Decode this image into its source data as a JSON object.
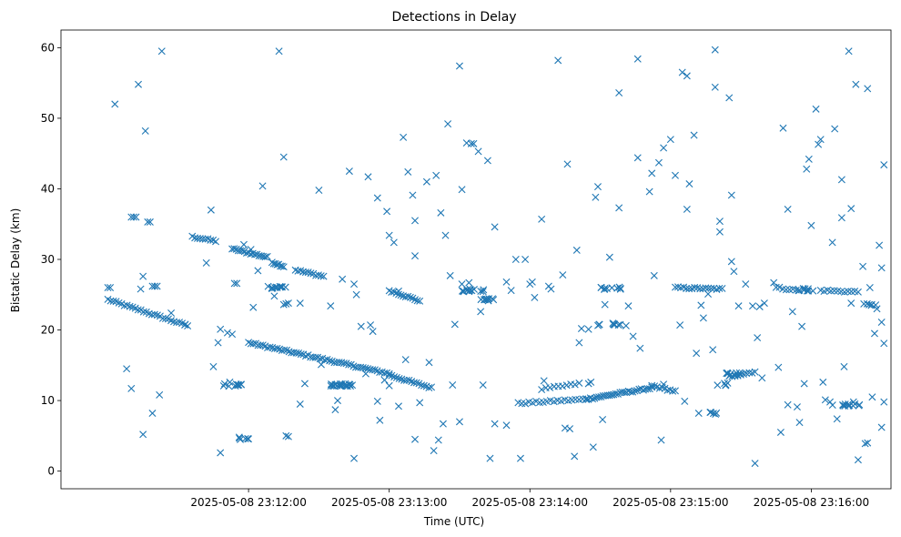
{
  "chart_data": {
    "type": "scatter",
    "title": "Detections in Delay",
    "xlabel": "Time (UTC)",
    "ylabel": "Bistatic Delay (km)",
    "x_unit": "seconds after 2025-05-08 23:11:00",
    "xlim": [
      -20,
      334
    ],
    "ylim": [
      -2.5,
      62.5
    ],
    "marker": "x",
    "color": "#1f77b4",
    "grid": false,
    "x_ticks": [
      {
        "value": 60,
        "label": "2025-05-08 23:12:00"
      },
      {
        "value": 120,
        "label": "2025-05-08 23:13:00"
      },
      {
        "value": 180,
        "label": "2025-05-08 23:14:00"
      },
      {
        "value": 240,
        "label": "2025-05-08 23:15:00"
      },
      {
        "value": 300,
        "label": "2025-05-08 23:16:00"
      }
    ],
    "y_ticks": [
      {
        "value": 0,
        "label": "0"
      },
      {
        "value": 10,
        "label": "10"
      },
      {
        "value": 20,
        "label": "20"
      },
      {
        "value": 30,
        "label": "30"
      },
      {
        "value": 40,
        "label": "40"
      },
      {
        "value": 50,
        "label": "50"
      },
      {
        "value": 60,
        "label": "60"
      }
    ],
    "tracks": [
      {
        "name": "track-a",
        "from": [
          0,
          24.3
        ],
        "to": [
          34,
          20.6
        ],
        "count": 30
      },
      {
        "name": "track-b",
        "from": [
          36,
          33.2
        ],
        "to": [
          46,
          32.6
        ],
        "count": 10
      },
      {
        "name": "track-c",
        "from": [
          53,
          31.5
        ],
        "to": [
          68,
          30.3
        ],
        "count": 18
      },
      {
        "name": "track-d",
        "from": [
          70,
          29.6
        ],
        "to": [
          75,
          29.0
        ],
        "count": 8
      },
      {
        "name": "track-e",
        "from": [
          80,
          28.5
        ],
        "to": [
          92,
          27.6
        ],
        "count": 12
      },
      {
        "name": "track-f",
        "from": [
          60,
          18.2
        ],
        "to": [
          120,
          13.8
        ],
        "count": 60
      },
      {
        "name": "track-g",
        "from": [
          120,
          13.6
        ],
        "to": [
          138,
          11.8
        ],
        "count": 18
      },
      {
        "name": "track-h",
        "from": [
          120,
          25.6
        ],
        "to": [
          133,
          24.1
        ],
        "count": 14
      },
      {
        "name": "track-i",
        "from": [
          175,
          9.6
        ],
        "to": [
          204,
          10.2
        ],
        "count": 20
      },
      {
        "name": "track-j",
        "from": [
          204,
          10.2
        ],
        "to": [
          232,
          11.8
        ],
        "count": 32
      },
      {
        "name": "track-k",
        "from": [
          185,
          11.6
        ],
        "to": [
          201,
          12.4
        ],
        "count": 10
      },
      {
        "name": "track-l",
        "from": [
          232,
          12.1
        ],
        "to": [
          242,
          11.3
        ],
        "count": 10
      },
      {
        "name": "track-m",
        "from": [
          242,
          26.0
        ],
        "to": [
          262,
          25.8
        ],
        "count": 18
      },
      {
        "name": "track-n",
        "from": [
          265,
          13.4
        ],
        "to": [
          276,
          14.1
        ],
        "count": 10
      },
      {
        "name": "track-o",
        "from": [
          285,
          26.0
        ],
        "to": [
          295,
          25.6
        ],
        "count": 8
      },
      {
        "name": "track-p",
        "from": [
          304,
          25.6
        ],
        "to": [
          320,
          25.4
        ],
        "count": 12
      }
    ],
    "clusters": [
      {
        "name": "cluster-1",
        "x": 72,
        "y": 26.0,
        "count": 10,
        "spread": 4
      },
      {
        "name": "cluster-2",
        "x": 53,
        "y": 12.2,
        "count": 10,
        "spread": 4
      },
      {
        "name": "cluster-3",
        "x": 58,
        "y": 4.6,
        "count": 5,
        "spread": 2
      },
      {
        "name": "cluster-4",
        "x": 100,
        "y": 12.2,
        "count": 22,
        "spread": 5
      },
      {
        "name": "cluster-5",
        "x": 156,
        "y": 25.6,
        "count": 14,
        "spread": 5
      },
      {
        "name": "cluster-6",
        "x": 162,
        "y": 24.3,
        "count": 10,
        "spread": 4
      },
      {
        "name": "cluster-7",
        "x": 214,
        "y": 25.9,
        "count": 10,
        "spread": 5
      },
      {
        "name": "cluster-8",
        "x": 213,
        "y": 20.8,
        "count": 10,
        "spread": 6
      },
      {
        "name": "cluster-9",
        "x": 315,
        "y": 9.4,
        "count": 12,
        "spread": 6
      },
      {
        "name": "cluster-10",
        "x": 298,
        "y": 25.7,
        "count": 8,
        "spread": 4
      },
      {
        "name": "cluster-11",
        "x": 325,
        "y": 23.6,
        "count": 6,
        "spread": 3
      },
      {
        "name": "cluster-12",
        "x": 267,
        "y": 13.8,
        "count": 8,
        "spread": 4
      },
      {
        "name": "cluster-13",
        "x": 258,
        "y": 8.2,
        "count": 5,
        "spread": 2
      },
      {
        "name": "cluster-14",
        "x": 262,
        "y": 12.3,
        "count": 5,
        "spread": 3
      }
    ],
    "points": [
      [
        0,
        26
      ],
      [
        1,
        26
      ],
      [
        3,
        52
      ],
      [
        8,
        14.5
      ],
      [
        10,
        11.7
      ],
      [
        10,
        36
      ],
      [
        11,
        36
      ],
      [
        12,
        36
      ],
      [
        13,
        54.8
      ],
      [
        14,
        25.8
      ],
      [
        15,
        27.6
      ],
      [
        16,
        48.2
      ],
      [
        17,
        35.3
      ],
      [
        18,
        35.3
      ],
      [
        19,
        26.2
      ],
      [
        19,
        8.2
      ],
      [
        20,
        26.2
      ],
      [
        21,
        26.2
      ],
      [
        22,
        10.8
      ],
      [
        23,
        59.5
      ],
      [
        42,
        29.5
      ],
      [
        44,
        37
      ],
      [
        45,
        14.8
      ],
      [
        47,
        18.2
      ],
      [
        48,
        20.1
      ],
      [
        51,
        19.6
      ],
      [
        52,
        12.6
      ],
      [
        53,
        19.4
      ],
      [
        54,
        26.6
      ],
      [
        55,
        26.6
      ],
      [
        58,
        32.1
      ],
      [
        61,
        31.4
      ],
      [
        62,
        23.2
      ],
      [
        64,
        28.4
      ],
      [
        66,
        40.4
      ],
      [
        70,
        26.0
      ],
      [
        71,
        24.8
      ],
      [
        73,
        59.5
      ],
      [
        74,
        26.1
      ],
      [
        75,
        44.5
      ],
      [
        75,
        23.6
      ],
      [
        76,
        5.0
      ],
      [
        76,
        23.7
      ],
      [
        77,
        23.8
      ],
      [
        82,
        23.8
      ],
      [
        90,
        39.8
      ],
      [
        95,
        23.4
      ],
      [
        100,
        27.2
      ],
      [
        103,
        42.5
      ],
      [
        105,
        26.5
      ],
      [
        106,
        25.0
      ],
      [
        108,
        20.5
      ],
      [
        111,
        41.7
      ],
      [
        112,
        20.7
      ],
      [
        113,
        19.8
      ],
      [
        115,
        38.7
      ],
      [
        119,
        36.8
      ],
      [
        120,
        33.4
      ],
      [
        122,
        32.4
      ],
      [
        124,
        25.5
      ],
      [
        126,
        47.3
      ],
      [
        127,
        15.8
      ],
      [
        128,
        42.4
      ],
      [
        130,
        39.1
      ],
      [
        131,
        35.5
      ],
      [
        131,
        30.5
      ],
      [
        136,
        41.0
      ],
      [
        137,
        15.4
      ],
      [
        139,
        2.9
      ],
      [
        140,
        41.9
      ],
      [
        142,
        36.6
      ],
      [
        143,
        6.7
      ],
      [
        144,
        33.4
      ],
      [
        145,
        49.2
      ],
      [
        146,
        27.7
      ],
      [
        148,
        20.8
      ],
      [
        150,
        57.4
      ],
      [
        151,
        26.5
      ],
      [
        151,
        39.9
      ],
      [
        153,
        46.5
      ],
      [
        154,
        26.7
      ],
      [
        155,
        46.4
      ],
      [
        156,
        46.4
      ],
      [
        158,
        45.3
      ],
      [
        159,
        22.6
      ],
      [
        162,
        44.0
      ],
      [
        163,
        1.8
      ],
      [
        165,
        34.6
      ],
      [
        165,
        6.7
      ],
      [
        170,
        26.8
      ],
      [
        174,
        30.0
      ],
      [
        176,
        1.8
      ],
      [
        178,
        30.0
      ],
      [
        180,
        26.5
      ],
      [
        181,
        26.8
      ],
      [
        185,
        35.7
      ],
      [
        188,
        26.2
      ],
      [
        189,
        25.8
      ],
      [
        192,
        58.2
      ],
      [
        194,
        27.8
      ],
      [
        196,
        43.5
      ],
      [
        197,
        6.0
      ],
      [
        200,
        31.3
      ],
      [
        201,
        18.2
      ],
      [
        202,
        20.2
      ],
      [
        205,
        20.1
      ],
      [
        207,
        3.4
      ],
      [
        208,
        38.8
      ],
      [
        209,
        40.3
      ],
      [
        211,
        7.3
      ],
      [
        212,
        23.6
      ],
      [
        214,
        30.3
      ],
      [
        218,
        37.3
      ],
      [
        218,
        53.6
      ],
      [
        221,
        20.6
      ],
      [
        222,
        23.4
      ],
      [
        224,
        19.1
      ],
      [
        226,
        58.4
      ],
      [
        226,
        44.4
      ],
      [
        227,
        17.4
      ],
      [
        231,
        39.6
      ],
      [
        232,
        42.2
      ],
      [
        233,
        27.7
      ],
      [
        235,
        43.7
      ],
      [
        236,
        4.4
      ],
      [
        237,
        45.8
      ],
      [
        240,
        47.0
      ],
      [
        242,
        41.9
      ],
      [
        244,
        20.7
      ],
      [
        245,
        56.5
      ],
      [
        247,
        56.0
      ],
      [
        247,
        37.1
      ],
      [
        248,
        40.7
      ],
      [
        250,
        47.6
      ],
      [
        251,
        16.7
      ],
      [
        252,
        8.2
      ],
      [
        253,
        23.5
      ],
      [
        254,
        21.7
      ],
      [
        256,
        25.1
      ],
      [
        258,
        17.2
      ],
      [
        259,
        59.7
      ],
      [
        259,
        54.4
      ],
      [
        261,
        33.9
      ],
      [
        261,
        35.4
      ],
      [
        265,
        52.9
      ],
      [
        266,
        39.1
      ],
      [
        266,
        29.7
      ],
      [
        267,
        28.3
      ],
      [
        269,
        23.4
      ],
      [
        272,
        26.5
      ],
      [
        275,
        23.4
      ],
      [
        276,
        1.1
      ],
      [
        277,
        18.9
      ],
      [
        278,
        23.3
      ],
      [
        279,
        13.2
      ],
      [
        280,
        23.8
      ],
      [
        284,
        26.7
      ],
      [
        286,
        14.7
      ],
      [
        288,
        48.6
      ],
      [
        290,
        37.1
      ],
      [
        292,
        22.6
      ],
      [
        294,
        9.1
      ],
      [
        296,
        20.5
      ],
      [
        297,
        12.4
      ],
      [
        298,
        42.8
      ],
      [
        299,
        44.2
      ],
      [
        300,
        34.8
      ],
      [
        302,
        51.3
      ],
      [
        303,
        46.3
      ],
      [
        304,
        47.0
      ],
      [
        305,
        12.6
      ],
      [
        308,
        9.8
      ],
      [
        309,
        32.4
      ],
      [
        310,
        48.5
      ],
      [
        313,
        41.3
      ],
      [
        313,
        35.9
      ],
      [
        314,
        14.8
      ],
      [
        316,
        59.5
      ],
      [
        317,
        37.2
      ],
      [
        317,
        23.8
      ],
      [
        319,
        54.8
      ],
      [
        320,
        1.6
      ],
      [
        322,
        29.0
      ],
      [
        323,
        3.9
      ],
      [
        324,
        4.0
      ],
      [
        324,
        54.2
      ],
      [
        325,
        26.0
      ],
      [
        326,
        10.5
      ],
      [
        327,
        19.5
      ],
      [
        328,
        23.0
      ],
      [
        329,
        32.0
      ],
      [
        330,
        28.8
      ],
      [
        330,
        21.1
      ],
      [
        331,
        43.4
      ],
      [
        331,
        18.1
      ],
      [
        331,
        9.8
      ],
      [
        330,
        6.2
      ],
      [
        15,
        5.2
      ],
      [
        48,
        2.6
      ],
      [
        56,
        4.8
      ],
      [
        77,
        4.9
      ],
      [
        82,
        9.5
      ],
      [
        84,
        12.4
      ],
      [
        98,
        10.0
      ],
      [
        105,
        1.8
      ],
      [
        115,
        9.9
      ],
      [
        120,
        12.1
      ],
      [
        124,
        9.2
      ],
      [
        131,
        4.5
      ],
      [
        141,
        4.4
      ],
      [
        150,
        7.0
      ],
      [
        160,
        12.2
      ],
      [
        170,
        6.5
      ],
      [
        186,
        12.8
      ],
      [
        195,
        6.1
      ],
      [
        199,
        2.1
      ],
      [
        205,
        12.4
      ],
      [
        237,
        12.3
      ],
      [
        246,
        9.9
      ],
      [
        287,
        5.5
      ],
      [
        290,
        9.4
      ],
      [
        295,
        6.9
      ],
      [
        306,
        10.1
      ],
      [
        311,
        7.4
      ],
      [
        318,
        9.8
      ],
      [
        27,
        22.4
      ],
      [
        33,
        20.8
      ],
      [
        91,
        15.1
      ],
      [
        97,
        8.7
      ],
      [
        110,
        13.8
      ],
      [
        116,
        7.2
      ],
      [
        118,
        12.9
      ],
      [
        133,
        9.7
      ],
      [
        147,
        12.2
      ],
      [
        172,
        25.6
      ],
      [
        182,
        24.6
      ],
      [
        206,
        12.6
      ]
    ]
  }
}
